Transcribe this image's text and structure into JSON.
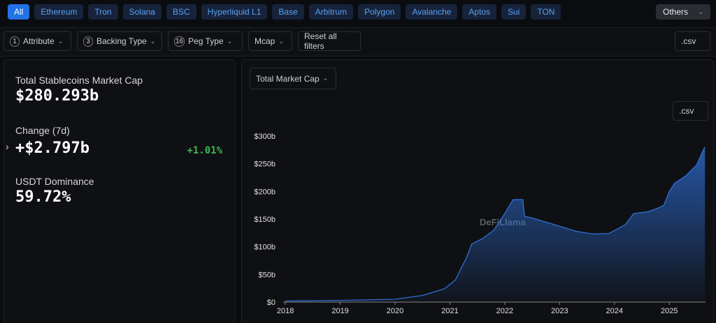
{
  "chains": {
    "tabs": [
      "All",
      "Ethereum",
      "Tron",
      "Solana",
      "BSC",
      "Hyperliquid L1",
      "Base",
      "Arbitrum",
      "Polygon",
      "Avalanche",
      "Aptos",
      "Sui",
      "TON"
    ],
    "more": "Others"
  },
  "filters": {
    "items": [
      {
        "count": 1,
        "label": "Attribute"
      },
      {
        "count": 3,
        "label": "Backing Type"
      },
      {
        "count": 16,
        "label": "Peg Type"
      },
      {
        "label": "Mcap"
      }
    ],
    "reset": "Reset all filters",
    "csv": ".csv"
  },
  "stats": [
    {
      "label": "Total Stablecoins Market Cap",
      "value": "$280.293b"
    },
    {
      "label": "Change (7d)",
      "value": "+$2.797b",
      "pct": "+1.01%"
    },
    {
      "label": "USDT Dominance",
      "value": "59.72%"
    }
  ],
  "chart": {
    "type": "area",
    "selector": "Total Market Cap",
    "csv": ".csv",
    "watermark": "DeFiLlama",
    "color": "#2f6fd6",
    "x": [
      2018.0,
      2019.0,
      2020.0,
      2020.5,
      2020.9,
      2021.1,
      2021.3,
      2021.4,
      2021.6,
      2021.8,
      2022.0,
      2022.15,
      2022.33,
      2022.36,
      2022.5,
      2022.9,
      2023.3,
      2023.6,
      2023.9,
      2024.2,
      2024.35,
      2024.6,
      2024.8,
      2024.9,
      2025.0,
      2025.1,
      2025.3,
      2025.5,
      2025.62,
      2025.65
    ],
    "values": [
      2,
      3,
      5,
      12,
      24,
      40,
      80,
      105,
      115,
      130,
      160,
      185,
      185,
      155,
      152,
      140,
      128,
      123,
      124,
      140,
      160,
      163,
      170,
      175,
      200,
      215,
      228,
      248,
      275,
      280
    ],
    "xlim": [
      2017.96,
      2025.66
    ],
    "xticks": [
      2018,
      2019,
      2020,
      2021,
      2022,
      2023,
      2024,
      2025
    ],
    "ylim": [
      0,
      300
    ],
    "yticks": [
      {
        "value": 0,
        "label": "$0"
      },
      {
        "value": 50,
        "label": "$50b"
      },
      {
        "value": 100,
        "label": "$100b"
      },
      {
        "value": 150,
        "label": "$150b"
      },
      {
        "value": 200,
        "label": "$200b"
      },
      {
        "value": 250,
        "label": "$250b"
      },
      {
        "value": 300,
        "label": "$300b"
      }
    ]
  }
}
